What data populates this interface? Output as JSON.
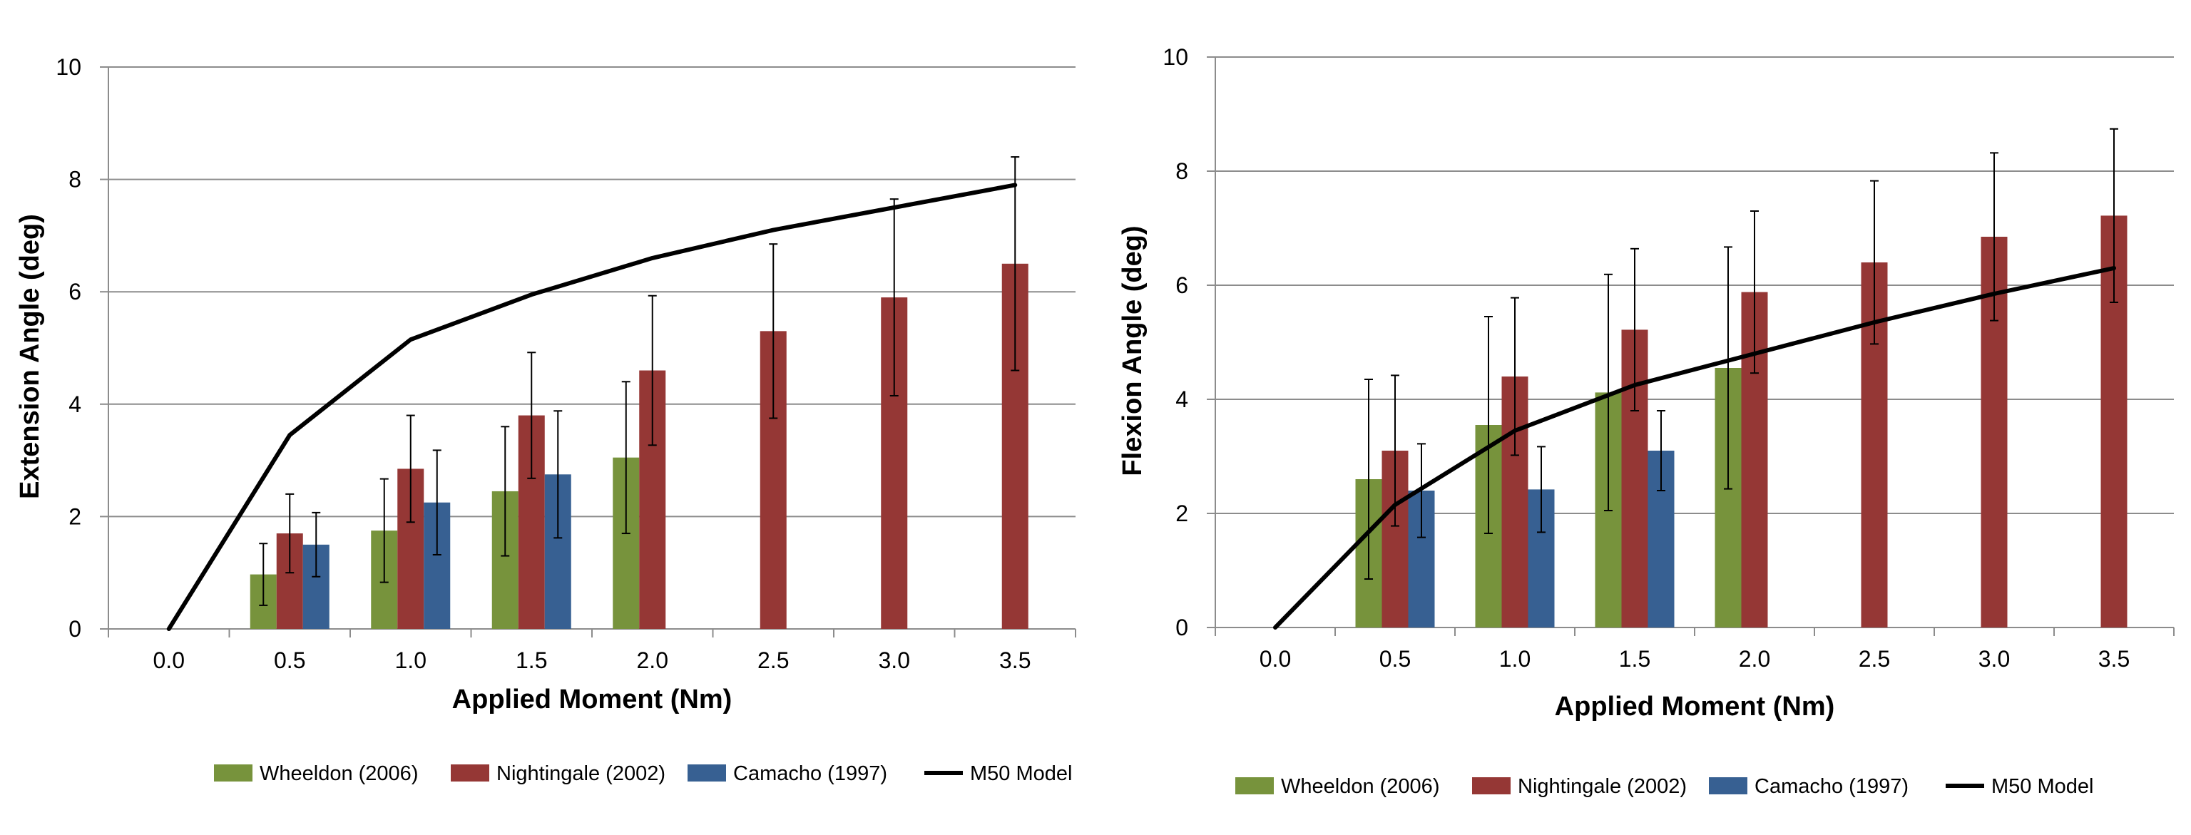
{
  "chart_data": [
    {
      "type": "bar",
      "categories": [
        "0.0",
        "0.5",
        "1.0",
        "1.5",
        "2.0",
        "2.5",
        "3.0",
        "3.5"
      ],
      "xlabel": "Applied Moment (Nm)",
      "ylabel": "Extension Angle (deg)",
      "ylim": [
        0,
        10
      ],
      "yticks": [
        "0",
        "2",
        "4",
        "6",
        "8",
        "10"
      ],
      "grid": true,
      "legend_position": "bottom",
      "series": [
        {
          "name": "Wheeldon (2006)",
          "kind": "bar",
          "color": "#77933C",
          "values": [
            null,
            0.97,
            1.75,
            2.45,
            3.05,
            null,
            null,
            null
          ],
          "error": [
            null,
            0.55,
            0.92,
            1.15,
            1.35,
            null,
            null,
            null
          ]
        },
        {
          "name": "Nightingale (2002)",
          "kind": "bar",
          "color": "#953735",
          "values": [
            null,
            1.7,
            2.85,
            3.8,
            4.6,
            5.3,
            5.9,
            6.5
          ],
          "error": [
            null,
            0.7,
            0.95,
            1.12,
            1.33,
            1.55,
            1.75,
            1.9
          ]
        },
        {
          "name": "Camacho (1997)",
          "kind": "bar",
          "color": "#376092",
          "values": [
            null,
            1.5,
            2.25,
            2.75,
            null,
            null,
            null,
            null
          ],
          "error": [
            null,
            0.57,
            0.93,
            1.13,
            null,
            null,
            null,
            null
          ]
        },
        {
          "name": "M50 Model",
          "kind": "line",
          "color": "#000000",
          "values": [
            0,
            3.45,
            5.15,
            5.95,
            6.6,
            7.1,
            7.5,
            7.9
          ]
        }
      ]
    },
    {
      "type": "bar",
      "categories": [
        "0.0",
        "0.5",
        "1.0",
        "1.5",
        "2.0",
        "2.5",
        "3.0",
        "3.5"
      ],
      "xlabel": "Applied Moment (Nm)",
      "ylabel": "Flexion Angle (deg)",
      "ylim": [
        0,
        10
      ],
      "yticks": [
        "0",
        "2",
        "4",
        "6",
        "8",
        "10"
      ],
      "grid": true,
      "legend_position": "bottom",
      "series": [
        {
          "name": "Wheeldon (2006)",
          "kind": "bar",
          "color": "#77933C",
          "values": [
            null,
            2.6,
            3.55,
            4.12,
            4.55,
            null,
            null,
            null
          ],
          "error": [
            null,
            1.75,
            1.9,
            2.07,
            2.12,
            null,
            null,
            null
          ]
        },
        {
          "name": "Nightingale (2002)",
          "kind": "bar",
          "color": "#953735",
          "values": [
            null,
            3.1,
            4.4,
            5.22,
            5.88,
            6.4,
            6.85,
            7.22
          ],
          "error": [
            null,
            1.32,
            1.38,
            1.42,
            1.42,
            1.43,
            1.47,
            1.52
          ]
        },
        {
          "name": "Camacho (1997)",
          "kind": "bar",
          "color": "#376092",
          "values": [
            null,
            2.4,
            2.42,
            3.1,
            null,
            null,
            null,
            null
          ],
          "error": [
            null,
            0.82,
            0.75,
            0.7,
            null,
            null,
            null,
            null
          ]
        },
        {
          "name": "M50 Model",
          "kind": "line",
          "color": "#000000",
          "values": [
            0,
            2.15,
            3.45,
            4.25,
            4.8,
            5.35,
            5.85,
            6.3
          ]
        }
      ]
    }
  ]
}
